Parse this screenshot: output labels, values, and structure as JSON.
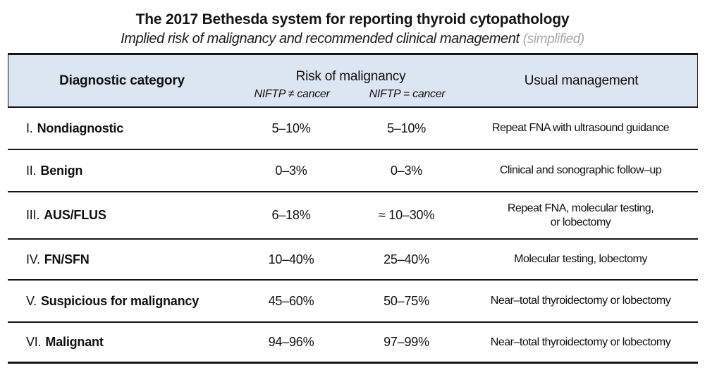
{
  "title": "The 2017 Bethesda system for reporting thyroid cytopathology",
  "subtitle": "Implied risk of malignancy and recommended clinical management",
  "subtitle_note": "(simplified)",
  "colors": {
    "header_bg": "#dce6f1",
    "rule": "#161616",
    "note_gray": "#a8a8a8",
    "text": "#111111"
  },
  "table": {
    "headers": {
      "diagnostic_category": "Diagnostic category",
      "risk_of_malignancy": "Risk of malignancy",
      "risk_sub_left": "NIFTP ≠ cancer",
      "risk_sub_right": "NIFTP = cancer",
      "usual_management": "Usual management"
    },
    "rows": [
      {
        "numeral": "I.",
        "category": "Nondiagnostic",
        "risk_niftp_not_cancer": "5–10%",
        "risk_niftp_cancer": "5–10%",
        "management": "Repeat FNA with ultrasound guidance"
      },
      {
        "numeral": "II.",
        "category": "Benign",
        "risk_niftp_not_cancer": "0–3%",
        "risk_niftp_cancer": "0–3%",
        "management": "Clinical and sonographic follow–up"
      },
      {
        "numeral": "III.",
        "category": "AUS/FLUS",
        "risk_niftp_not_cancer": "6–18%",
        "risk_niftp_cancer": "≈ 10–30%",
        "management": "Repeat FNA, molecular testing,\nor lobectomy"
      },
      {
        "numeral": "IV.",
        "category": "FN/SFN",
        "risk_niftp_not_cancer": "10–40%",
        "risk_niftp_cancer": "25–40%",
        "management": "Molecular testing, lobectomy"
      },
      {
        "numeral": "V.",
        "category": "Suspicious for malignancy",
        "risk_niftp_not_cancer": "45–60%",
        "risk_niftp_cancer": "50–75%",
        "management": "Near–total thyroidectomy or lobectomy"
      },
      {
        "numeral": "VI.",
        "category": "Malignant",
        "risk_niftp_not_cancer": "94–96%",
        "risk_niftp_cancer": "97–99%",
        "management": "Near–total thyroidectomy or lobectomy"
      }
    ]
  }
}
